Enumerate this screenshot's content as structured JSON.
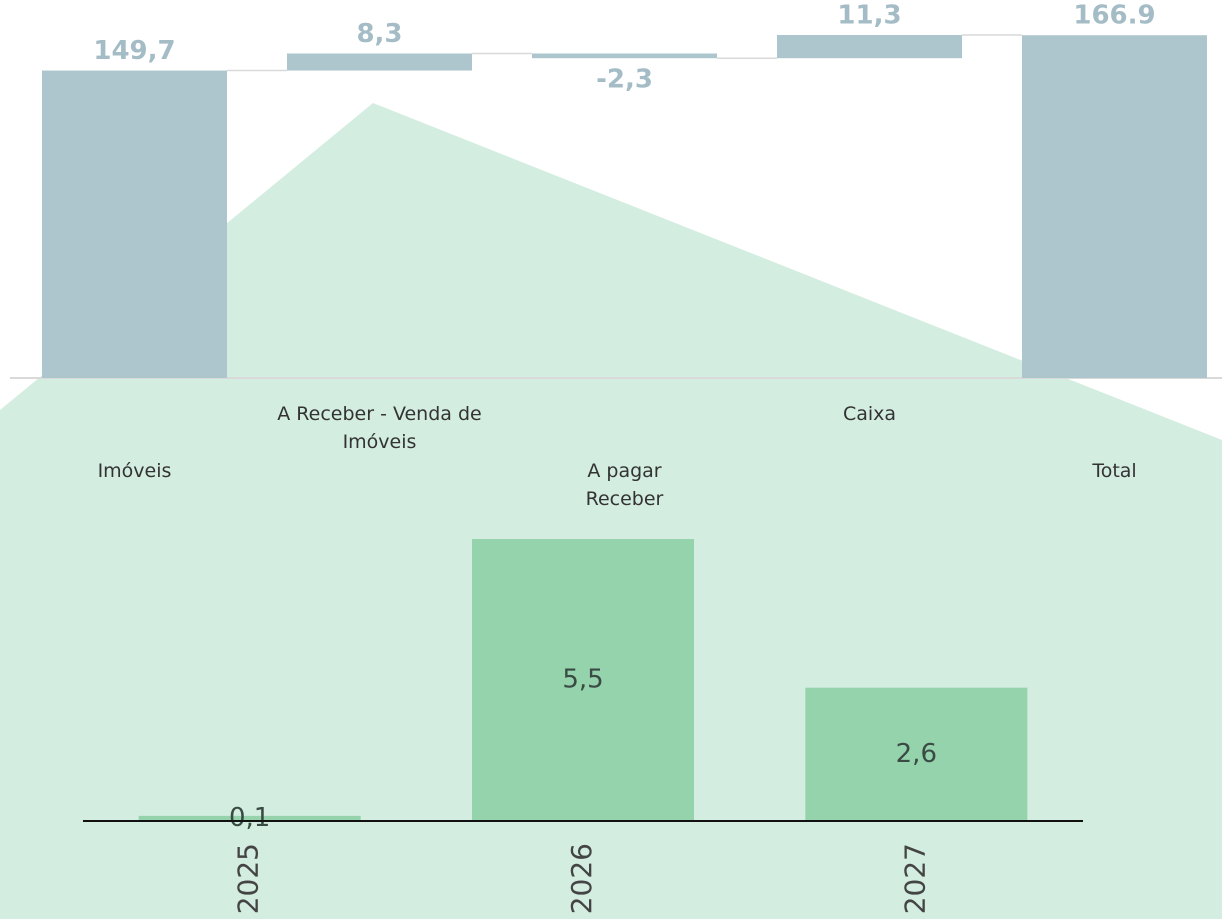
{
  "chart_data": [
    {
      "type": "waterfall",
      "categories": [
        "Imóveis",
        "A Receber - Venda de Imóveis",
        "A pagar Receber",
        "Caixa",
        "Total"
      ],
      "values": [
        149.7,
        8.3,
        -2.3,
        11.3,
        166.9
      ],
      "value_labels": [
        "149,7",
        "8,3",
        "-2,3",
        "11,3",
        "166.9"
      ],
      "color": "#adc6cd"
    },
    {
      "type": "bar",
      "categories": [
        "2025",
        "2026",
        "2027"
      ],
      "values": [
        0.1,
        5.5,
        2.6
      ],
      "value_labels": [
        "0,1",
        "5,5",
        "2,6"
      ],
      "color": "#94d3ab"
    }
  ]
}
